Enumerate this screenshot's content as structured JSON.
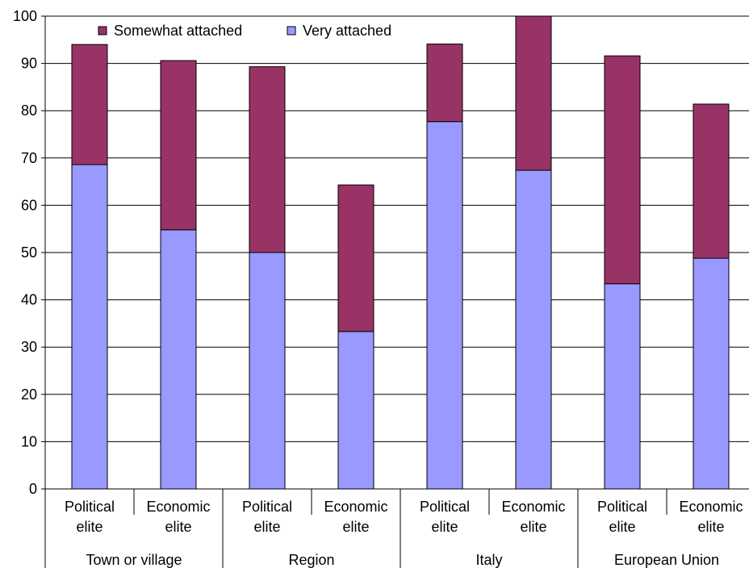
{
  "chart_data": {
    "type": "bar",
    "stacked": true,
    "title": "",
    "xlabel": "",
    "ylabel": "",
    "ylim": [
      0,
      100
    ],
    "yticks": [
      0,
      10,
      20,
      30,
      40,
      50,
      60,
      70,
      80,
      90,
      100
    ],
    "grid": true,
    "legend_position": "top-left",
    "categories": [
      {
        "line1": "Political",
        "line2": "elite"
      },
      {
        "line1": "Economic",
        "line2": "elite"
      },
      {
        "line1": "Political",
        "line2": "elite"
      },
      {
        "line1": "Economic",
        "line2": "elite"
      },
      {
        "line1": "Political",
        "line2": "elite"
      },
      {
        "line1": "Economic",
        "line2": "elite"
      },
      {
        "line1": "Political",
        "line2": "elite"
      },
      {
        "line1": "Economic",
        "line2": "elite"
      }
    ],
    "groups": [
      "Town or village",
      "Region",
      "Italy",
      "European Union"
    ],
    "series": [
      {
        "name": "Very attached",
        "color": "#9999ff",
        "values": [
          68.6,
          54.8,
          50.0,
          33.3,
          77.7,
          67.4,
          43.4,
          48.8
        ]
      },
      {
        "name": "Somewhat attached",
        "color": "#993366",
        "values": [
          25.4,
          35.8,
          39.3,
          31.0,
          16.4,
          32.6,
          48.2,
          32.6
        ]
      }
    ],
    "legend_order": [
      "Somewhat attached",
      "Very attached"
    ]
  }
}
